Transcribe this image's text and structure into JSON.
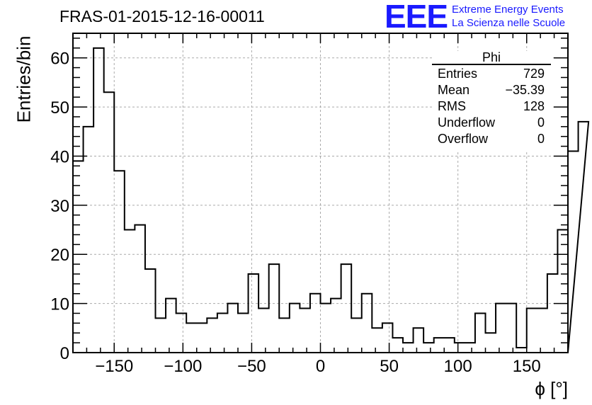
{
  "chart_data": {
    "type": "bar",
    "title": "FRAS-01-2015-12-16-00011",
    "xlabel": "ϕ [°]",
    "ylabel": "Entries/bin",
    "xlim": [
      -180,
      180
    ],
    "ylim": [
      0,
      65
    ],
    "grid": true,
    "bin_width": 7.5,
    "x_ticks": [
      "−150",
      "−100",
      "−50",
      "0",
      "50",
      "100",
      "150"
    ],
    "y_ticks": [
      "0",
      "10",
      "20",
      "30",
      "40",
      "50",
      "60"
    ],
    "series": [
      {
        "name": "Phi",
        "values": [
          39,
          46,
          62,
          53,
          37,
          25,
          26,
          17,
          7,
          11,
          8,
          6,
          6,
          7,
          8,
          10,
          8,
          16,
          9,
          18,
          7,
          10,
          9,
          12,
          10,
          11,
          18,
          7,
          12,
          5,
          6,
          3,
          2,
          5,
          2,
          3,
          3,
          2,
          2,
          8,
          4,
          10,
          10,
          1,
          9,
          9,
          16,
          25,
          41,
          47
        ]
      }
    ],
    "stats_box": {
      "title": "Phi",
      "rows": [
        {
          "label": "Entries",
          "value": "729"
        },
        {
          "label": "Mean",
          "value": "−35.39"
        },
        {
          "label": "RMS",
          "value": "128"
        },
        {
          "label": "Underflow",
          "value": "0"
        },
        {
          "label": "Overflow",
          "value": "0"
        }
      ]
    }
  },
  "logo": {
    "mark": "EEE",
    "line1": "Extreme Energy Events",
    "line2": "La Scienza nelle Scuole",
    "color": "#1a1aff"
  }
}
